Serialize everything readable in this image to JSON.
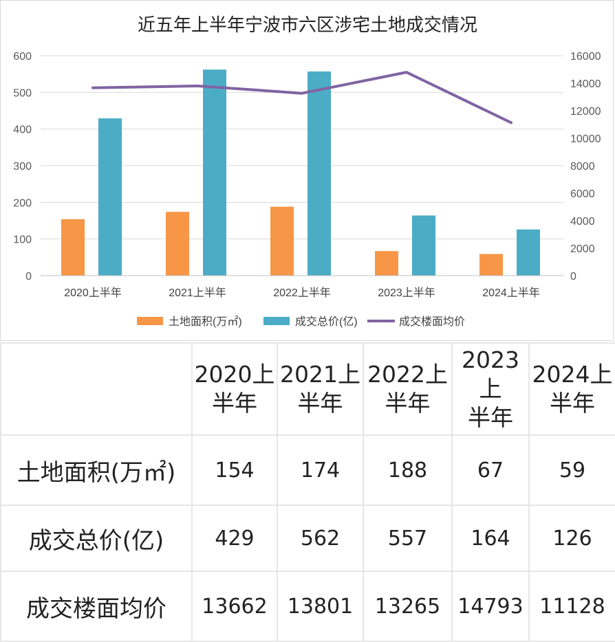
{
  "chart_data": {
    "type": "bar",
    "title": "近五年上半年宁波市六区涉宅土地成交情况",
    "categories": [
      "2020上半年",
      "2021上半年",
      "2022上半年",
      "2023上半年",
      "2024上半年"
    ],
    "series": [
      {
        "name": "土地面积(万㎡)",
        "type": "bar",
        "axis": "left",
        "color": "#F79646",
        "values": [
          154,
          174,
          188,
          67,
          59
        ]
      },
      {
        "name": "成交总价(亿)",
        "type": "bar",
        "axis": "left",
        "color": "#4BACC6",
        "values": [
          429,
          562,
          557,
          164,
          126
        ]
      },
      {
        "name": "成交楼面均价",
        "type": "line",
        "axis": "right",
        "color": "#8064A2",
        "values": [
          13662,
          13801,
          13265,
          14793,
          11128
        ]
      }
    ],
    "left_axis": {
      "min": 0,
      "max": 600,
      "ticks": [
        "0",
        "100",
        "200",
        "300",
        "400",
        "500",
        "600"
      ]
    },
    "right_axis": {
      "min": 0,
      "max": 16000,
      "ticks": [
        "0",
        "2000",
        "4000",
        "6000",
        "8000",
        "10000",
        "12000",
        "14000",
        "16000"
      ]
    },
    "legend_position": "bottom",
    "grid": true
  },
  "table": {
    "headers": [
      [
        "2020上",
        "半年"
      ],
      [
        "2021上",
        "半年"
      ],
      [
        "2022上",
        "半年"
      ],
      [
        "2023上",
        "半年"
      ],
      [
        "2024上",
        "半年"
      ]
    ],
    "rows": [
      {
        "label": "土地面积(万㎡)",
        "values": [
          "154",
          "174",
          "188",
          "67",
          "59"
        ]
      },
      {
        "label": "成交总价(亿)",
        "values": [
          "429",
          "562",
          "557",
          "164",
          "126"
        ]
      },
      {
        "label": "成交楼面均价",
        "values": [
          "13662",
          "13801",
          "13265",
          "14793",
          "11128"
        ]
      }
    ]
  }
}
